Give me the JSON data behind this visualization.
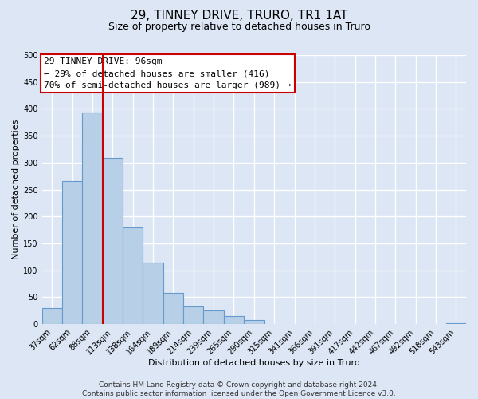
{
  "title": "29, TINNEY DRIVE, TRURO, TR1 1AT",
  "subtitle": "Size of property relative to detached houses in Truro",
  "xlabel": "Distribution of detached houses by size in Truro",
  "ylabel": "Number of detached properties",
  "bar_labels": [
    "37sqm",
    "62sqm",
    "88sqm",
    "113sqm",
    "138sqm",
    "164sqm",
    "189sqm",
    "214sqm",
    "239sqm",
    "265sqm",
    "290sqm",
    "315sqm",
    "341sqm",
    "366sqm",
    "391sqm",
    "417sqm",
    "442sqm",
    "467sqm",
    "492sqm",
    "518sqm",
    "543sqm"
  ],
  "bar_values": [
    30,
    265,
    393,
    308,
    180,
    115,
    58,
    32,
    25,
    15,
    7,
    0,
    0,
    0,
    0,
    0,
    0,
    0,
    0,
    0,
    2
  ],
  "bar_color": "#b8cfe8",
  "bar_edge_color": "#6699cc",
  "vline_index": 2,
  "vline_color": "#cc0000",
  "ylim": [
    0,
    500
  ],
  "yticks": [
    0,
    50,
    100,
    150,
    200,
    250,
    300,
    350,
    400,
    450,
    500
  ],
  "annotation_title": "29 TINNEY DRIVE: 96sqm",
  "annotation_line1": "← 29% of detached houses are smaller (416)",
  "annotation_line2": "70% of semi-detached houses are larger (989) →",
  "annotation_box_color": "#ffffff",
  "annotation_box_edge": "#cc0000",
  "footer1": "Contains HM Land Registry data © Crown copyright and database right 2024.",
  "footer2": "Contains public sector information licensed under the Open Government Licence v3.0.",
  "bg_color": "#dce6f5",
  "plot_bg_color": "#dce6f5",
  "grid_color": "#ffffff",
  "title_fontsize": 11,
  "subtitle_fontsize": 9,
  "axis_label_fontsize": 8,
  "tick_fontsize": 7,
  "footer_fontsize": 6.5,
  "annotation_fontsize": 8
}
